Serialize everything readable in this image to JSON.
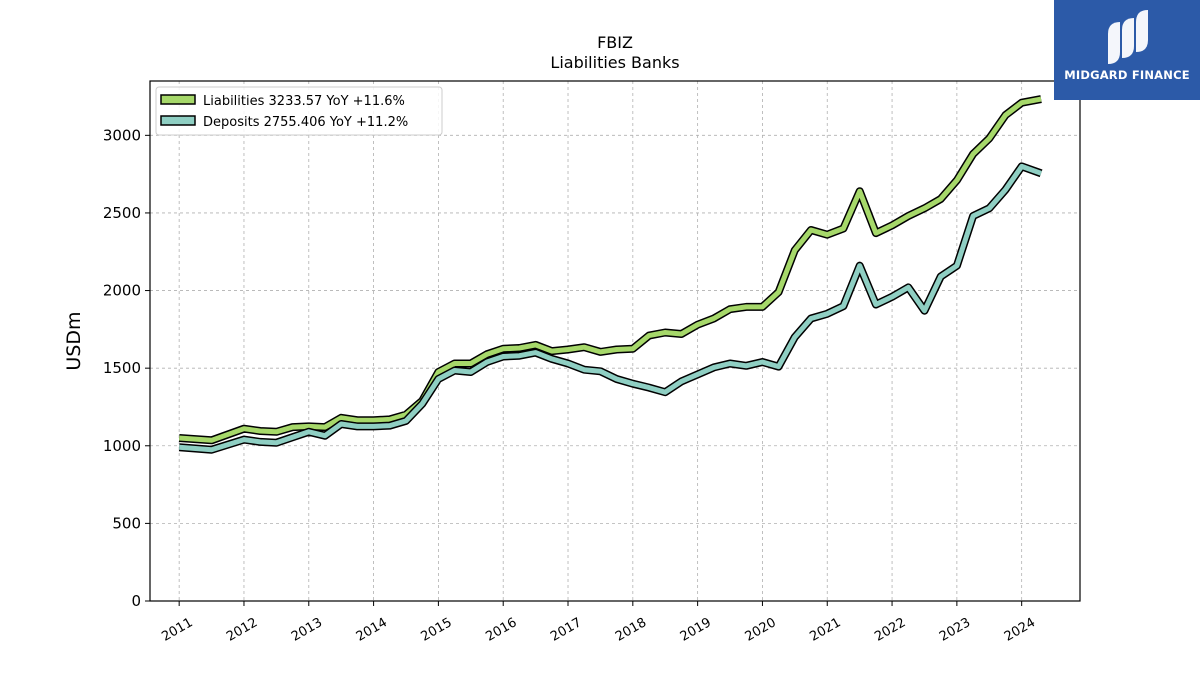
{
  "brand": {
    "name": "MIDGARD FINANCE",
    "background": "#2c5aa8",
    "text_color": "#ffffff",
    "icon": "midgard-finance-logo-icon"
  },
  "chart_data": {
    "type": "line",
    "title": "FBIZ",
    "subtitle": "Liabilities Banks",
    "ylabel": "USDm",
    "xlabel": "",
    "ylim": [
      0,
      3350
    ],
    "yticks": [
      0,
      500,
      1000,
      1500,
      2000,
      2500,
      3000
    ],
    "ytick_labels": [
      "0",
      "500",
      "1000",
      "1500",
      "2000",
      "2500",
      "3000"
    ],
    "xlim": [
      2010.55,
      2024.9
    ],
    "xticks": [
      2011,
      2012,
      2013,
      2014,
      2015,
      2016,
      2017,
      2018,
      2019,
      2020,
      2021,
      2022,
      2023,
      2024
    ],
    "xtick_labels": [
      "2011",
      "2012",
      "2013",
      "2014",
      "2015",
      "2016",
      "2017",
      "2018",
      "2019",
      "2020",
      "2021",
      "2022",
      "2023",
      "2024"
    ],
    "grid": true,
    "legend_position": "top-left",
    "x": [
      2011.0,
      2011.5,
      2012.0,
      2012.25,
      2012.5,
      2012.75,
      2013.0,
      2013.25,
      2013.5,
      2013.75,
      2014.0,
      2014.25,
      2014.5,
      2014.75,
      2015.0,
      2015.25,
      2015.5,
      2015.75,
      2016.0,
      2016.25,
      2016.5,
      2016.75,
      2017.0,
      2017.25,
      2017.5,
      2017.75,
      2018.0,
      2018.25,
      2018.5,
      2018.75,
      2019.0,
      2019.25,
      2019.5,
      2019.75,
      2020.0,
      2020.25,
      2020.5,
      2020.75,
      2021.0,
      2021.25,
      2021.5,
      2021.75,
      2022.0,
      2022.25,
      2022.5,
      2022.75,
      2023.0,
      2023.25,
      2023.5,
      2023.75,
      2024.0,
      2024.3
    ],
    "series": [
      {
        "name": "Liabilities",
        "legend_label": "Liabilities  3233.57 YoY +11.6%",
        "color": "#a6d86a",
        "values": [
          1050,
          1035,
          1110,
          1095,
          1090,
          1120,
          1125,
          1120,
          1180,
          1165,
          1165,
          1170,
          1200,
          1290,
          1475,
          1530,
          1530,
          1590,
          1625,
          1630,
          1650,
          1610,
          1620,
          1635,
          1605,
          1620,
          1625,
          1710,
          1730,
          1720,
          1780,
          1820,
          1880,
          1895,
          1895,
          1990,
          2260,
          2390,
          2360,
          2400,
          2640,
          2370,
          2420,
          2480,
          2530,
          2590,
          2710,
          2880,
          2980,
          3130,
          3210,
          3233.57
        ]
      },
      {
        "name": "Deposits",
        "legend_label": "Deposits  2755.406 YoY +11.2%",
        "color": "#8fcfc3",
        "values": [
          990,
          975,
          1040,
          1025,
          1020,
          1055,
          1090,
          1065,
          1140,
          1125,
          1125,
          1130,
          1160,
          1270,
          1430,
          1485,
          1475,
          1540,
          1575,
          1580,
          1600,
          1560,
          1530,
          1490,
          1480,
          1430,
          1400,
          1375,
          1345,
          1415,
          1460,
          1505,
          1530,
          1515,
          1540,
          1510,
          1700,
          1820,
          1850,
          1900,
          2160,
          1910,
          1960,
          2020,
          1870,
          2090,
          2160,
          2480,
          2530,
          2650,
          2800,
          2755.406
        ]
      }
    ]
  }
}
